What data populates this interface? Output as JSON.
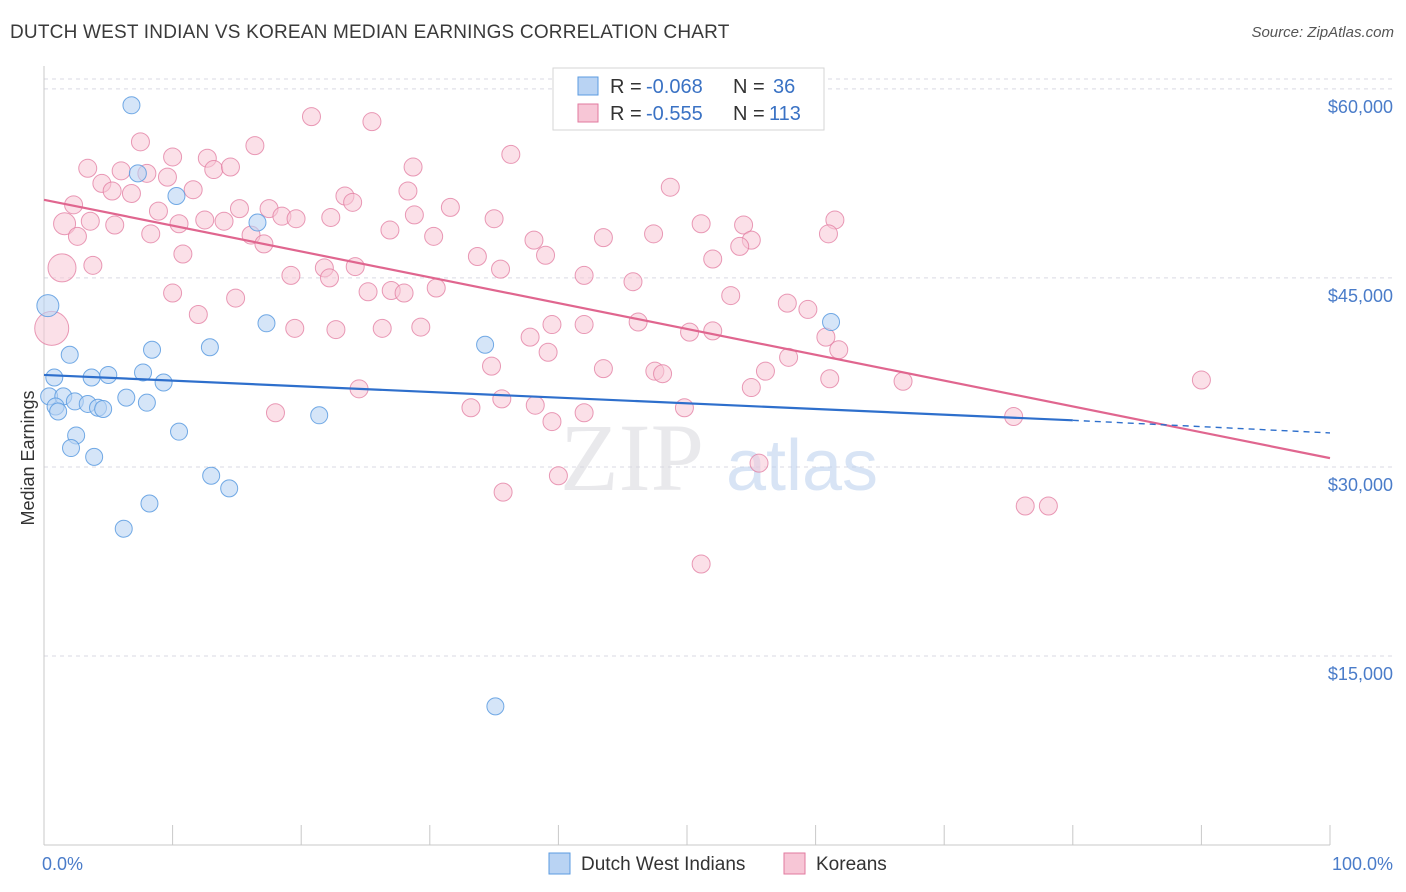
{
  "title": "DUTCH WEST INDIAN VS KOREAN MEDIAN EARNINGS CORRELATION CHART",
  "source": "Source: ZipAtlas.com",
  "watermark": {
    "zip": "ZIP",
    "atlas": "atlas"
  },
  "colors": {
    "blue": "#5b9be0",
    "blue_fill": "#b9d3f3",
    "blue_line": "#2e6fcc",
    "pink": "#e27a9f",
    "pink_fill": "#f7c6d6",
    "pink_line": "#e0668f",
    "grid": "#d9d9e3",
    "tick_text": "#4a7cc9"
  },
  "legend": {
    "r_label": "R =",
    "n_label": "N =",
    "blue_r": "-0.068",
    "blue_n": "36",
    "pink_r": "-0.555",
    "pink_n": "113"
  },
  "chart_data": {
    "type": "scatter",
    "title": "DUTCH WEST INDIAN VS KOREAN MEDIAN EARNINGS CORRELATION CHART",
    "xlabel": "",
    "ylabel": "Median Earnings",
    "xlim": [
      0,
      100
    ],
    "ylim": [
      0,
      61500
    ],
    "x_tick_labels": [
      "0.0%",
      "100.0%"
    ],
    "y_ticks": [
      15000,
      30000,
      45000,
      60000
    ],
    "y_tick_labels": [
      "$15,000",
      "$30,000",
      "$45,000",
      "$60,000"
    ],
    "grid": true,
    "series": [
      {
        "name": "Dutch West Indians",
        "color": "blue",
        "trend": {
          "x0": 0,
          "y0": 37300,
          "x1": 80,
          "y1": 33700,
          "dash_to_x": 100,
          "dash_to_y": 32700
        },
        "points": [
          [
            6.8,
            58700
          ],
          [
            7.3,
            53300
          ],
          [
            10.3,
            51500
          ],
          [
            16.6,
            49400
          ],
          [
            0.3,
            42800
          ],
          [
            17.3,
            41400
          ],
          [
            2.0,
            38900
          ],
          [
            8.4,
            39300
          ],
          [
            12.9,
            39500
          ],
          [
            34.3,
            39700
          ],
          [
            61.2,
            41500
          ],
          [
            0.8,
            37100
          ],
          [
            3.7,
            37100
          ],
          [
            5.0,
            37300
          ],
          [
            7.7,
            37500
          ],
          [
            9.3,
            36700
          ],
          [
            0.4,
            35600
          ],
          [
            1.5,
            35600
          ],
          [
            2.4,
            35200
          ],
          [
            3.4,
            35000
          ],
          [
            4.2,
            34700
          ],
          [
            4.6,
            34600
          ],
          [
            6.4,
            35500
          ],
          [
            8.0,
            35100
          ],
          [
            0.9,
            34800
          ],
          [
            1.1,
            34400
          ],
          [
            2.5,
            32500
          ],
          [
            10.5,
            32800
          ],
          [
            21.4,
            34100
          ],
          [
            2.1,
            31500
          ],
          [
            3.9,
            30800
          ],
          [
            13.0,
            29300
          ],
          [
            14.4,
            28300
          ],
          [
            8.2,
            27100
          ],
          [
            6.2,
            25100
          ],
          [
            35.1,
            11000
          ]
        ]
      },
      {
        "name": "Koreans",
        "color": "pink",
        "trend": {
          "x0": 0,
          "y0": 51200,
          "x1": 100,
          "y1": 30700
        },
        "points": [
          [
            20.8,
            57800
          ],
          [
            25.5,
            57400
          ],
          [
            7.5,
            55800
          ],
          [
            16.4,
            55500
          ],
          [
            36.3,
            54800
          ],
          [
            10.0,
            54600
          ],
          [
            12.7,
            54500
          ],
          [
            3.4,
            53700
          ],
          [
            6.0,
            53500
          ],
          [
            8.0,
            53300
          ],
          [
            9.6,
            53000
          ],
          [
            13.2,
            53600
          ],
          [
            14.5,
            53800
          ],
          [
            28.7,
            53800
          ],
          [
            4.5,
            52500
          ],
          [
            11.6,
            52000
          ],
          [
            5.3,
            51900
          ],
          [
            6.8,
            51700
          ],
          [
            23.4,
            51500
          ],
          [
            28.3,
            51900
          ],
          [
            48.7,
            52200
          ],
          [
            2.3,
            50800
          ],
          [
            8.9,
            50300
          ],
          [
            15.2,
            50500
          ],
          [
            17.5,
            50500
          ],
          [
            24.0,
            51000
          ],
          [
            31.6,
            50600
          ],
          [
            1.6,
            49300
          ],
          [
            3.6,
            49500
          ],
          [
            5.5,
            49200
          ],
          [
            10.5,
            49300
          ],
          [
            12.5,
            49600
          ],
          [
            14.0,
            49500
          ],
          [
            18.5,
            49900
          ],
          [
            19.6,
            49700
          ],
          [
            22.3,
            49800
          ],
          [
            28.8,
            50000
          ],
          [
            35.0,
            49700
          ],
          [
            51.1,
            49300
          ],
          [
            54.4,
            49200
          ],
          [
            61.5,
            49600
          ],
          [
            2.6,
            48300
          ],
          [
            8.3,
            48500
          ],
          [
            16.1,
            48400
          ],
          [
            26.9,
            48800
          ],
          [
            30.3,
            48300
          ],
          [
            38.1,
            48000
          ],
          [
            43.5,
            48200
          ],
          [
            47.4,
            48500
          ],
          [
            55.0,
            48000
          ],
          [
            54.1,
            47500
          ],
          [
            61.0,
            48500
          ],
          [
            17.1,
            47700
          ],
          [
            10.8,
            46900
          ],
          [
            33.7,
            46700
          ],
          [
            39.0,
            46800
          ],
          [
            52.0,
            46500
          ],
          [
            21.8,
            45800
          ],
          [
            24.2,
            45900
          ],
          [
            35.5,
            45700
          ],
          [
            42.0,
            45200
          ],
          [
            3.8,
            46000
          ],
          [
            19.2,
            45200
          ],
          [
            22.2,
            45000
          ],
          [
            27.0,
            44000
          ],
          [
            30.5,
            44200
          ],
          [
            45.8,
            44700
          ],
          [
            53.4,
            43600
          ],
          [
            10.0,
            43800
          ],
          [
            14.9,
            43400
          ],
          [
            25.2,
            43900
          ],
          [
            28.0,
            43800
          ],
          [
            57.8,
            43000
          ],
          [
            59.4,
            42500
          ],
          [
            1.4,
            45800
          ],
          [
            0.6,
            41000
          ],
          [
            12.0,
            42100
          ],
          [
            19.5,
            41000
          ],
          [
            22.7,
            40900
          ],
          [
            26.3,
            41000
          ],
          [
            29.3,
            41100
          ],
          [
            37.8,
            40300
          ],
          [
            39.5,
            41300
          ],
          [
            42.0,
            41300
          ],
          [
            46.2,
            41500
          ],
          [
            50.2,
            40700
          ],
          [
            52.0,
            40800
          ],
          [
            60.8,
            40300
          ],
          [
            39.2,
            39100
          ],
          [
            57.9,
            38700
          ],
          [
            61.8,
            39300
          ],
          [
            34.8,
            38000
          ],
          [
            43.5,
            37800
          ],
          [
            47.5,
            37600
          ],
          [
            48.1,
            37400
          ],
          [
            56.1,
            37600
          ],
          [
            61.1,
            37000
          ],
          [
            66.8,
            36800
          ],
          [
            90.0,
            36900
          ],
          [
            24.5,
            36200
          ],
          [
            35.6,
            35400
          ],
          [
            38.2,
            34900
          ],
          [
            33.2,
            34700
          ],
          [
            42.0,
            34300
          ],
          [
            49.8,
            34700
          ],
          [
            55.0,
            36300
          ],
          [
            18.0,
            34300
          ],
          [
            39.5,
            33600
          ],
          [
            75.4,
            34000
          ],
          [
            40.0,
            29300
          ],
          [
            55.6,
            30300
          ],
          [
            35.7,
            28000
          ],
          [
            76.3,
            26900
          ],
          [
            78.1,
            26900
          ],
          [
            51.1,
            22300
          ]
        ]
      }
    ]
  }
}
